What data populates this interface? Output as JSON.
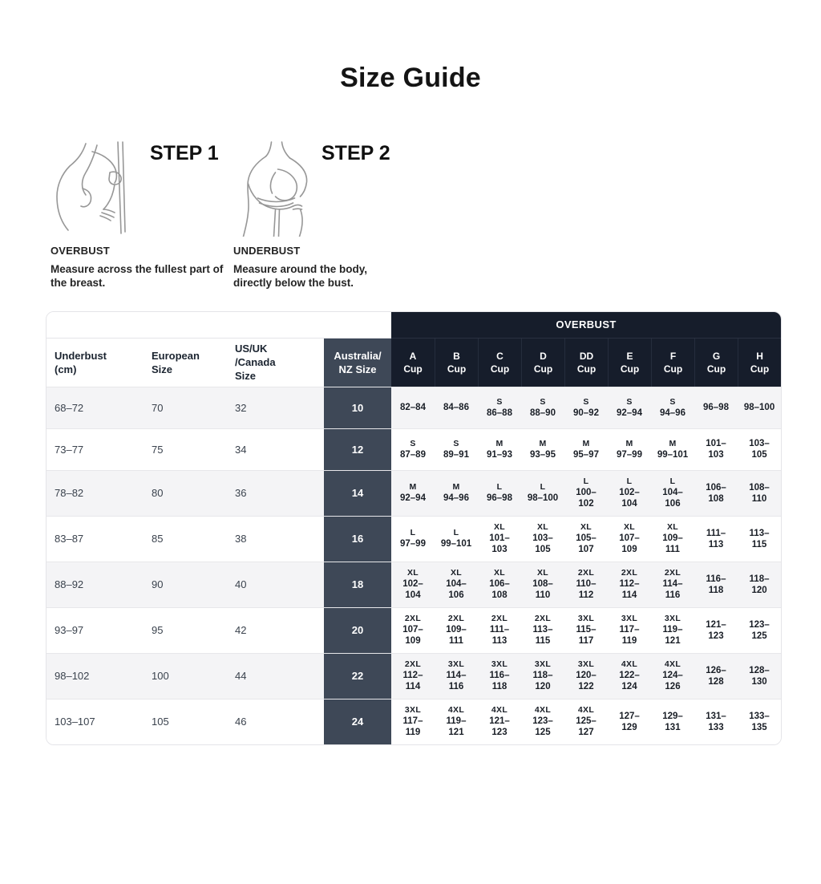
{
  "page": {
    "title": "Size Guide"
  },
  "colors": {
    "navy_header": "#161d2b",
    "slate_column": "#3e4857",
    "row_alt": "#f4f4f6",
    "row_plain": "#ffffff",
    "border": "#e7e7ea",
    "text_dark": "#1b2430",
    "white": "#ffffff"
  },
  "steps": [
    {
      "label": "STEP 1",
      "measure": "OVERBUST",
      "description": "Measure across the fullest part of the breast.",
      "figure": "overbust-measurement-illustration"
    },
    {
      "label": "STEP 2",
      "measure": "UNDERBUST",
      "description": "Measure around the body, directly below the bust.",
      "figure": "underbust-measurement-illustration"
    }
  ],
  "table": {
    "group_header": "OVERBUST",
    "left_headers": [
      {
        "lines": [
          "Underbust",
          "(cm)"
        ]
      },
      {
        "lines": [
          "European",
          "Size"
        ]
      },
      {
        "lines": [
          "US/UK",
          "/Canada",
          "Size"
        ]
      },
      {
        "lines": [
          "Australia/",
          "NZ Size"
        ]
      }
    ],
    "cup_headers": [
      {
        "lines": [
          "A",
          "Cup"
        ]
      },
      {
        "lines": [
          "B",
          "Cup"
        ]
      },
      {
        "lines": [
          "C",
          "Cup"
        ]
      },
      {
        "lines": [
          "D",
          "Cup"
        ]
      },
      {
        "lines": [
          "DD",
          "Cup"
        ]
      },
      {
        "lines": [
          "E",
          "Cup"
        ]
      },
      {
        "lines": [
          "F",
          "Cup"
        ]
      },
      {
        "lines": [
          "G",
          "Cup"
        ]
      },
      {
        "lines": [
          "H",
          "Cup"
        ]
      }
    ],
    "rows": [
      {
        "underbust_cm": "68–72",
        "european_size": "70",
        "us_uk_canada_size": "32",
        "aunz_size": "10",
        "cups": [
          [
            "82–84"
          ],
          [
            "84–86"
          ],
          [
            "S",
            "86–88"
          ],
          [
            "S",
            "88–90"
          ],
          [
            "S",
            "90–92"
          ],
          [
            "S",
            "92–94"
          ],
          [
            "S",
            "94–96"
          ],
          [
            "96–98"
          ],
          [
            "98–100"
          ]
        ]
      },
      {
        "underbust_cm": "73–77",
        "european_size": "75",
        "us_uk_canada_size": "34",
        "aunz_size": "12",
        "cups": [
          [
            "S",
            "87–89"
          ],
          [
            "S",
            "89–91"
          ],
          [
            "M",
            "91–93"
          ],
          [
            "M",
            "93–95"
          ],
          [
            "M",
            "95–97"
          ],
          [
            "M",
            "97–99"
          ],
          [
            "M",
            "99–101"
          ],
          [
            "101–",
            "103"
          ],
          [
            "103–",
            "105"
          ]
        ]
      },
      {
        "underbust_cm": "78–82",
        "european_size": "80",
        "us_uk_canada_size": "36",
        "aunz_size": "14",
        "cups": [
          [
            "M",
            "92–94"
          ],
          [
            "M",
            "94–96"
          ],
          [
            "L",
            "96–98"
          ],
          [
            "L",
            "98–100"
          ],
          [
            "L",
            "100–",
            "102"
          ],
          [
            "L",
            "102–",
            "104"
          ],
          [
            "L",
            "104–",
            "106"
          ],
          [
            "106–",
            "108"
          ],
          [
            "108–",
            "110"
          ]
        ]
      },
      {
        "underbust_cm": "83–87",
        "european_size": "85",
        "us_uk_canada_size": "38",
        "aunz_size": "16",
        "cups": [
          [
            "L",
            "97–99"
          ],
          [
            "L",
            "99–101"
          ],
          [
            "XL",
            "101–",
            "103"
          ],
          [
            "XL",
            "103–",
            "105"
          ],
          [
            "XL",
            "105–",
            "107"
          ],
          [
            "XL",
            "107–",
            "109"
          ],
          [
            "XL",
            "109–",
            "111"
          ],
          [
            "111–",
            "113"
          ],
          [
            "113–",
            "115"
          ]
        ]
      },
      {
        "underbust_cm": "88–92",
        "european_size": "90",
        "us_uk_canada_size": "40",
        "aunz_size": "18",
        "cups": [
          [
            "XL",
            "102–",
            "104"
          ],
          [
            "XL",
            "104–",
            "106"
          ],
          [
            "XL",
            "106–",
            "108"
          ],
          [
            "XL",
            "108–",
            "110"
          ],
          [
            "2XL",
            "110–",
            "112"
          ],
          [
            "2XL",
            "112–",
            "114"
          ],
          [
            "2XL",
            "114–",
            "116"
          ],
          [
            "116–",
            "118"
          ],
          [
            "118–",
            "120"
          ]
        ]
      },
      {
        "underbust_cm": "93–97",
        "european_size": "95",
        "us_uk_canada_size": "42",
        "aunz_size": "20",
        "cups": [
          [
            "2XL",
            "107–",
            "109"
          ],
          [
            "2XL",
            "109–",
            "111"
          ],
          [
            "2XL",
            "111–",
            "113"
          ],
          [
            "2XL",
            "113–",
            "115"
          ],
          [
            "3XL",
            "115–",
            "117"
          ],
          [
            "3XL",
            "117–",
            "119"
          ],
          [
            "3XL",
            "119–",
            "121"
          ],
          [
            "121–",
            "123"
          ],
          [
            "123–",
            "125"
          ]
        ]
      },
      {
        "underbust_cm": "98–102",
        "european_size": "100",
        "us_uk_canada_size": "44",
        "aunz_size": "22",
        "cups": [
          [
            "2XL",
            "112–",
            "114"
          ],
          [
            "3XL",
            "114–",
            "116"
          ],
          [
            "3XL",
            "116–",
            "118"
          ],
          [
            "3XL",
            "118–",
            "120"
          ],
          [
            "3XL",
            "120–",
            "122"
          ],
          [
            "4XL",
            "122–",
            "124"
          ],
          [
            "4XL",
            "124–",
            "126"
          ],
          [
            "126–",
            "128"
          ],
          [
            "128–",
            "130"
          ]
        ]
      },
      {
        "underbust_cm": "103–107",
        "european_size": "105",
        "us_uk_canada_size": "46",
        "aunz_size": "24",
        "cups": [
          [
            "3XL",
            "117–",
            "119"
          ],
          [
            "4XL",
            "119–",
            "121"
          ],
          [
            "4XL",
            "121–",
            "123"
          ],
          [
            "4XL",
            "123–",
            "125"
          ],
          [
            "4XL",
            "125–",
            "127"
          ],
          [
            "127–",
            "129"
          ],
          [
            "129–",
            "131"
          ],
          [
            "131–",
            "133"
          ],
          [
            "133–",
            "135"
          ]
        ]
      }
    ]
  }
}
